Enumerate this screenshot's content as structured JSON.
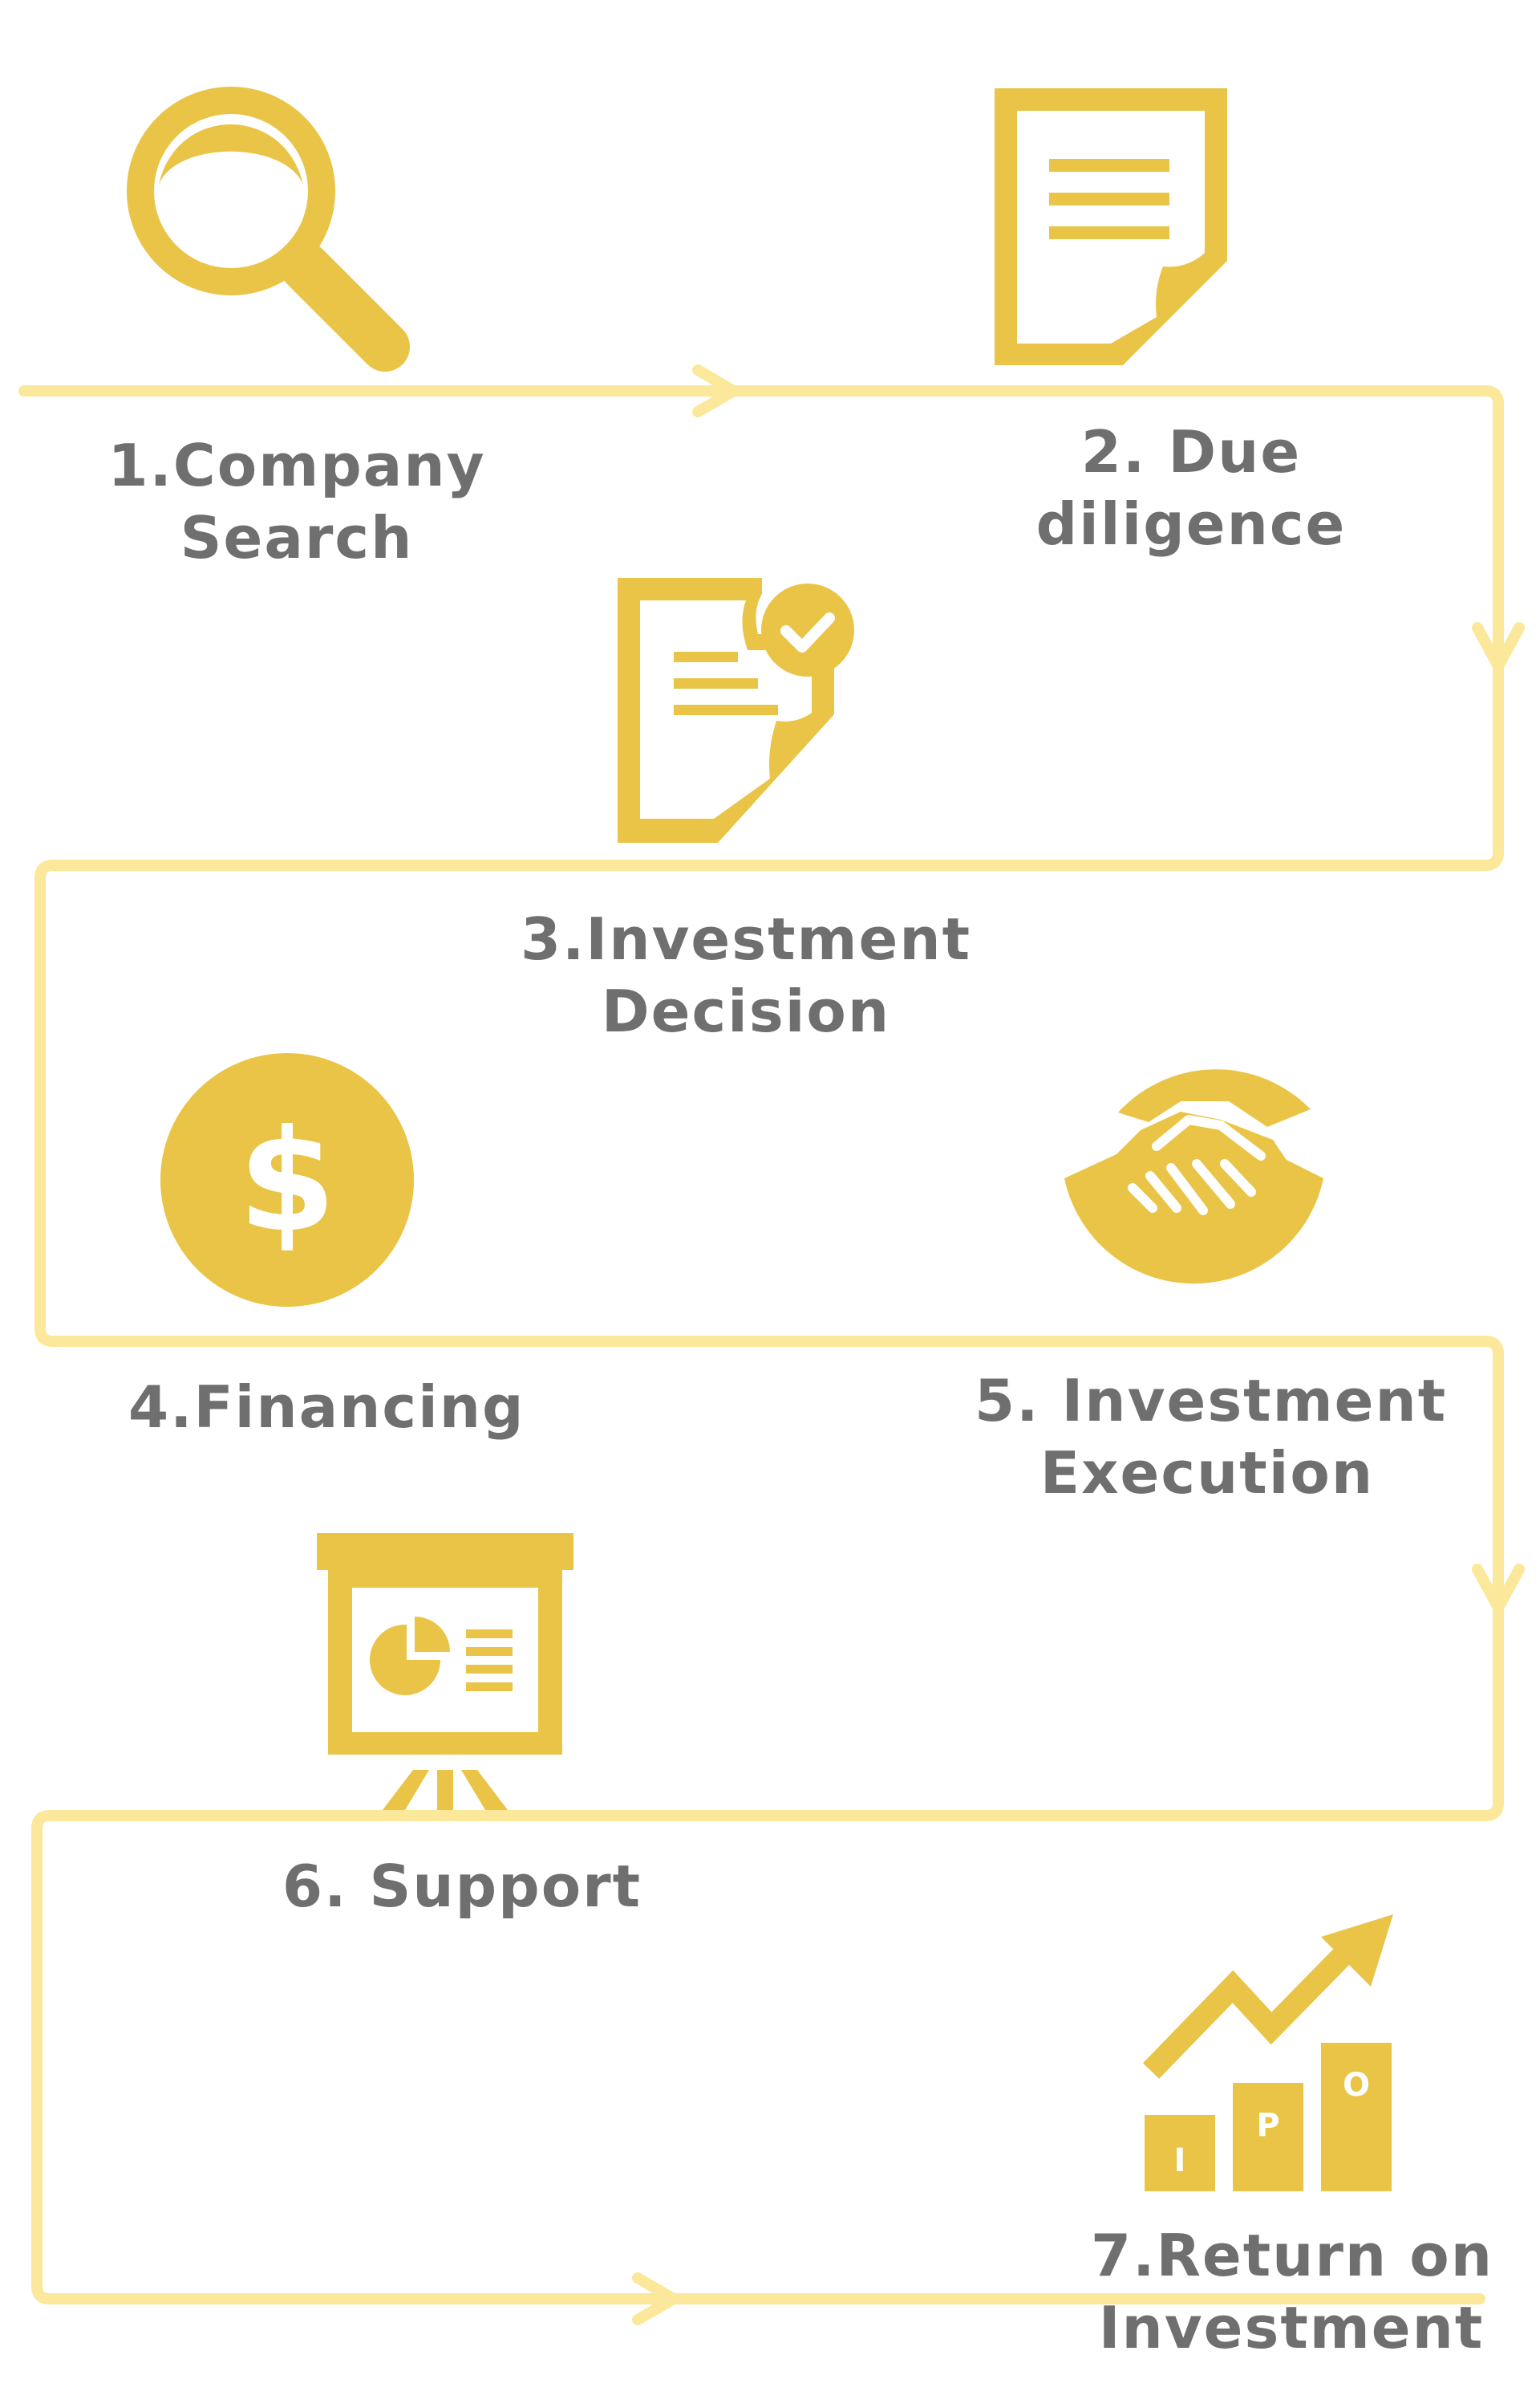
{
  "colors": {
    "icon": "#e9c446",
    "path": "#fbe89a",
    "label": "#6f6f6f",
    "background": "#ffffff"
  },
  "steps": [
    {
      "lines": [
        "1.Company",
        "Search"
      ],
      "icon": "magnifier-icon"
    },
    {
      "lines": [
        "2. Due",
        "diligence"
      ],
      "icon": "document-icon"
    },
    {
      "lines": [
        "3.Investment",
        "Decision"
      ],
      "icon": "approved-document-icon"
    },
    {
      "lines": [
        "4.Financing"
      ],
      "icon": "dollar-icon"
    },
    {
      "lines": [
        "5. Investment",
        "Execution"
      ],
      "icon": "handshake-icon"
    },
    {
      "lines": [
        "6. Support"
      ],
      "icon": "presentation-board-icon"
    },
    {
      "lines": [
        "7.Return on",
        "Investment"
      ],
      "icon": "ipo-growth-chart-icon"
    }
  ],
  "ipo_letters": [
    "I",
    "P",
    "O"
  ]
}
